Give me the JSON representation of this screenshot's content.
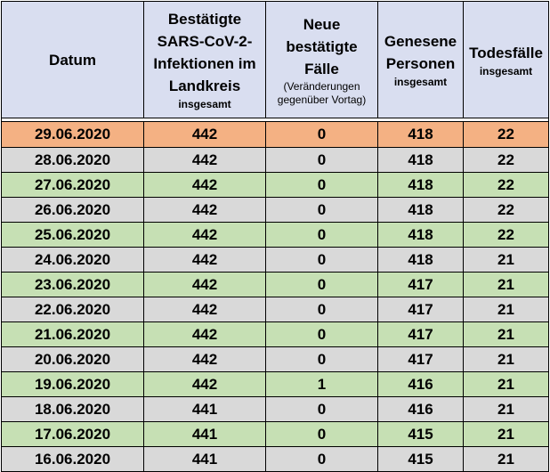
{
  "headers": {
    "datum": "Datum",
    "bestaetigte_line1": "Bestätigte",
    "bestaetigte_line2": "SARS-CoV-2-",
    "bestaetigte_line3": "Infektionen im",
    "bestaetigte_line4": "Landkreis",
    "bestaetigte_sub": "insgesamt",
    "neue_line1": "Neue",
    "neue_line2": "bestätigte",
    "neue_line3": "Fälle",
    "neue_sub1": "(Veränderungen",
    "neue_sub2": "gegenüber Vortag)",
    "genesene_line1": "Genesene",
    "genesene_line2": "Personen",
    "genesene_sub": "insgesamt",
    "tode_line1": "Todesfälle",
    "tode_sub": "insgesamt"
  },
  "rows": [
    {
      "datum": "29.06.2020",
      "infektionen": "442",
      "neue": "0",
      "genesene": "418",
      "todesfaelle": "22"
    },
    {
      "datum": "28.06.2020",
      "infektionen": "442",
      "neue": "0",
      "genesene": "418",
      "todesfaelle": "22"
    },
    {
      "datum": "27.06.2020",
      "infektionen": "442",
      "neue": "0",
      "genesene": "418",
      "todesfaelle": "22"
    },
    {
      "datum": "26.06.2020",
      "infektionen": "442",
      "neue": "0",
      "genesene": "418",
      "todesfaelle": "22"
    },
    {
      "datum": "25.06.2020",
      "infektionen": "442",
      "neue": "0",
      "genesene": "418",
      "todesfaelle": "22"
    },
    {
      "datum": "24.06.2020",
      "infektionen": "442",
      "neue": "0",
      "genesene": "418",
      "todesfaelle": "21"
    },
    {
      "datum": "23.06.2020",
      "infektionen": "442",
      "neue": "0",
      "genesene": "417",
      "todesfaelle": "21"
    },
    {
      "datum": "22.06.2020",
      "infektionen": "442",
      "neue": "0",
      "genesene": "417",
      "todesfaelle": "21"
    },
    {
      "datum": "21.06.2020",
      "infektionen": "442",
      "neue": "0",
      "genesene": "417",
      "todesfaelle": "21"
    },
    {
      "datum": "20.06.2020",
      "infektionen": "442",
      "neue": "0",
      "genesene": "417",
      "todesfaelle": "21"
    },
    {
      "datum": "19.06.2020",
      "infektionen": "442",
      "neue": "1",
      "genesene": "416",
      "todesfaelle": "21"
    },
    {
      "datum": "18.06.2020",
      "infektionen": "441",
      "neue": "0",
      "genesene": "416",
      "todesfaelle": "21"
    },
    {
      "datum": "17.06.2020",
      "infektionen": "441",
      "neue": "0",
      "genesene": "415",
      "todesfaelle": "21"
    },
    {
      "datum": "16.06.2020",
      "infektionen": "441",
      "neue": "0",
      "genesene": "415",
      "todesfaelle": "21"
    }
  ],
  "colors": {
    "header_bg": "#d9def0",
    "highlight_row": "#f4b183",
    "row_grey": "#d9d9d9",
    "row_green": "#c6e0b4"
  }
}
